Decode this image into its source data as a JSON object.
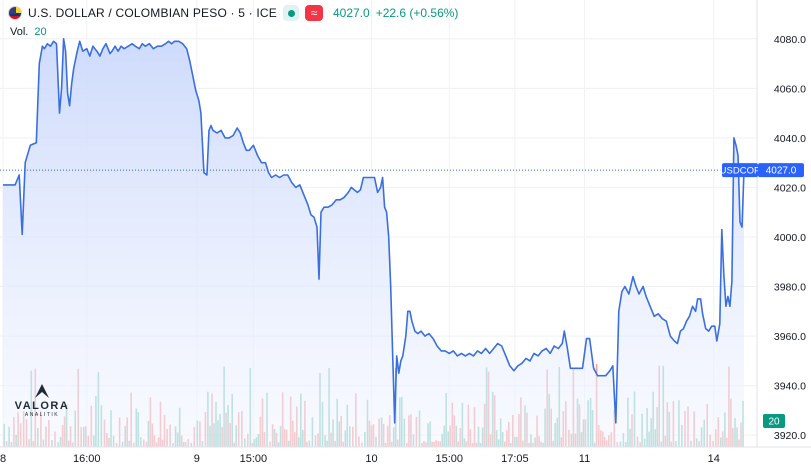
{
  "legend": {
    "title": "U.S. DOLLAR / COLOMBIAN PESO · 5 · ICE",
    "price": "4027.0",
    "change": "+22.6 (+0.56%)",
    "wave_glyph": "≈",
    "icons": [
      "us-colombia-flag-icon",
      "market-status-dot-icon",
      "wave-icon"
    ]
  },
  "volume_legend": {
    "label": "Vol.",
    "value": "20"
  },
  "logo": {
    "name": "VALORA",
    "subtitle": "ANALITIK"
  },
  "colors": {
    "line": "#3a6fe0",
    "area_top": "#c9d7fb",
    "area_bottom": "#f3f6ff",
    "vol_up": "#7fc9bb",
    "vol_down": "#f29b98",
    "accent_green": "#089981",
    "price_tag": "#2962ff",
    "vol_tag": "#089981"
  },
  "chart_data": {
    "type": "area",
    "symbol": "USDCOP",
    "last_price": 4027.0,
    "last_price_label": "4027.0",
    "symbol_tag": "USDCOP",
    "volume_tag": "20",
    "ylim": [
      3912,
      4090
    ],
    "y_ticks": [
      "4080.0",
      "4060.0",
      "4040.0",
      "4020.0",
      "4000.0",
      "3980.0",
      "3960.0",
      "3940.0",
      "3920.0"
    ],
    "y_tick_values": [
      4080,
      4060,
      4040,
      4020,
      4000,
      3980,
      3960,
      3940,
      3920
    ],
    "x_ticks": [
      {
        "label": "8",
        "t": 0
      },
      {
        "label": "16:00",
        "t": 83
      },
      {
        "label": "9",
        "t": 192
      },
      {
        "label": "15:00",
        "t": 248
      },
      {
        "label": "10",
        "t": 365
      },
      {
        "label": "15:00",
        "t": 442
      },
      {
        "label": "17:05",
        "t": 507
      },
      {
        "label": "11",
        "t": 576
      },
      {
        "label": "14",
        "t": 704
      }
    ],
    "x_range": [
      0,
      730
    ],
    "price_series": [
      [
        0,
        4021
      ],
      [
        12,
        4021
      ],
      [
        16,
        4025
      ],
      [
        19,
        4001
      ],
      [
        22,
        4030
      ],
      [
        27,
        4037
      ],
      [
        33,
        4038
      ],
      [
        36,
        4070
      ],
      [
        39,
        4077
      ],
      [
        41,
        4076
      ],
      [
        44,
        4078
      ],
      [
        47,
        4077
      ],
      [
        50,
        4079
      ],
      [
        53,
        4078
      ],
      [
        56,
        4050
      ],
      [
        58,
        4060
      ],
      [
        60,
        4080
      ],
      [
        62,
        4075
      ],
      [
        64,
        4058
      ],
      [
        66,
        4053
      ],
      [
        68,
        4062
      ],
      [
        70,
        4068
      ],
      [
        73,
        4074
      ],
      [
        76,
        4079
      ],
      [
        79,
        4075
      ],
      [
        83,
        4076
      ],
      [
        86,
        4073
      ],
      [
        89,
        4077
      ],
      [
        93,
        4075
      ],
      [
        96,
        4073
      ],
      [
        99,
        4076
      ],
      [
        102,
        4078
      ],
      [
        106,
        4074
      ],
      [
        108,
        4075
      ],
      [
        111,
        4077
      ],
      [
        114,
        4075
      ],
      [
        117,
        4077
      ],
      [
        120,
        4076
      ],
      [
        124,
        4077
      ],
      [
        128,
        4078
      ],
      [
        131,
        4077
      ],
      [
        135,
        4076
      ],
      [
        138,
        4078
      ],
      [
        141,
        4077
      ],
      [
        145,
        4078
      ],
      [
        149,
        4076
      ],
      [
        153,
        4077
      ],
      [
        157,
        4077
      ],
      [
        161,
        4078
      ],
      [
        164,
        4079
      ],
      [
        167,
        4078
      ],
      [
        170,
        4079
      ],
      [
        174,
        4079
      ],
      [
        178,
        4078
      ],
      [
        182,
        4076
      ],
      [
        185,
        4071
      ],
      [
        188,
        4065
      ],
      [
        191,
        4059
      ],
      [
        194,
        4055
      ],
      [
        196,
        4050
      ],
      [
        199,
        4026
      ],
      [
        202,
        4025
      ],
      [
        204,
        4043
      ],
      [
        206,
        4045
      ],
      [
        208,
        4043
      ],
      [
        212,
        4042
      ],
      [
        216,
        4043
      ],
      [
        220,
        4040
      ],
      [
        224,
        4040
      ],
      [
        228,
        4041
      ],
      [
        232,
        4044
      ],
      [
        235,
        4042
      ],
      [
        238,
        4038
      ],
      [
        241,
        4035
      ],
      [
        244,
        4035
      ],
      [
        248,
        4037
      ],
      [
        252,
        4033
      ],
      [
        256,
        4030
      ],
      [
        260,
        4030
      ],
      [
        263,
        4026
      ],
      [
        266,
        4024
      ],
      [
        270,
        4025
      ],
      [
        274,
        4024
      ],
      [
        278,
        4025
      ],
      [
        282,
        4025
      ],
      [
        286,
        4022
      ],
      [
        290,
        4020
      ],
      [
        294,
        4021
      ],
      [
        298,
        4017
      ],
      [
        302,
        4013
      ],
      [
        305,
        4009
      ],
      [
        308,
        4008
      ],
      [
        311,
        4004
      ],
      [
        313,
        3983
      ],
      [
        315,
        4010
      ],
      [
        318,
        4012
      ],
      [
        322,
        4012
      ],
      [
        326,
        4013
      ],
      [
        330,
        4015
      ],
      [
        334,
        4015
      ],
      [
        338,
        4016
      ],
      [
        342,
        4018
      ],
      [
        345,
        4020
      ],
      [
        348,
        4019
      ],
      [
        351,
        4018
      ],
      [
        354,
        4019
      ],
      [
        357,
        4024
      ],
      [
        360,
        4024
      ],
      [
        364,
        4024
      ],
      [
        368,
        4024
      ],
      [
        371,
        4018
      ],
      [
        374,
        4020
      ],
      [
        376,
        4024
      ],
      [
        378,
        4012
      ],
      [
        380,
        4010
      ],
      [
        382,
        4000
      ],
      [
        384,
        3980
      ],
      [
        386,
        3952
      ],
      [
        388,
        3925
      ],
      [
        390,
        3952
      ],
      [
        392,
        3945
      ],
      [
        394,
        3950
      ],
      [
        396,
        3952
      ],
      [
        399,
        3960
      ],
      [
        401,
        3970
      ],
      [
        403,
        3970
      ],
      [
        405,
        3966
      ],
      [
        408,
        3962
      ],
      [
        411,
        3961
      ],
      [
        414,
        3962
      ],
      [
        418,
        3960
      ],
      [
        422,
        3961
      ],
      [
        426,
        3959
      ],
      [
        430,
        3956
      ],
      [
        434,
        3954
      ],
      [
        438,
        3954
      ],
      [
        442,
        3953
      ],
      [
        446,
        3954
      ],
      [
        450,
        3952
      ],
      [
        454,
        3953
      ],
      [
        458,
        3952
      ],
      [
        462,
        3953
      ],
      [
        466,
        3952
      ],
      [
        470,
        3954
      ],
      [
        474,
        3953
      ],
      [
        478,
        3955
      ],
      [
        482,
        3953
      ],
      [
        486,
        3955
      ],
      [
        490,
        3957
      ],
      [
        494,
        3956
      ],
      [
        498,
        3952
      ],
      [
        502,
        3948
      ],
      [
        506,
        3946
      ],
      [
        510,
        3948
      ],
      [
        514,
        3949
      ],
      [
        518,
        3951
      ],
      [
        522,
        3950
      ],
      [
        526,
        3953
      ],
      [
        530,
        3952
      ],
      [
        534,
        3954
      ],
      [
        538,
        3955
      ],
      [
        542,
        3953
      ],
      [
        546,
        3956
      ],
      [
        550,
        3955
      ],
      [
        554,
        3957
      ],
      [
        556,
        3962
      ],
      [
        559,
        3955
      ],
      [
        562,
        3947
      ],
      [
        566,
        3947
      ],
      [
        570,
        3947
      ],
      [
        574,
        3947
      ],
      [
        578,
        3959
      ],
      [
        581,
        3959
      ],
      [
        585,
        3947
      ],
      [
        589,
        3944
      ],
      [
        593,
        3944
      ],
      [
        597,
        3944
      ],
      [
        601,
        3946
      ],
      [
        604,
        3948
      ],
      [
        607,
        3925
      ],
      [
        610,
        3970
      ],
      [
        613,
        3978
      ],
      [
        616,
        3980
      ],
      [
        620,
        3977
      ],
      [
        624,
        3984
      ],
      [
        627,
        3980
      ],
      [
        630,
        3977
      ],
      [
        634,
        3980
      ],
      [
        637,
        3976
      ],
      [
        641,
        3972
      ],
      [
        645,
        3968
      ],
      [
        649,
        3969
      ],
      [
        653,
        3967
      ],
      [
        657,
        3966
      ],
      [
        661,
        3960
      ],
      [
        665,
        3958
      ],
      [
        668,
        3957
      ],
      [
        671,
        3962
      ],
      [
        674,
        3963
      ],
      [
        677,
        3966
      ],
      [
        680,
        3968
      ],
      [
        683,
        3972
      ],
      [
        686,
        3970
      ],
      [
        688,
        3975
      ],
      [
        691,
        3975
      ],
      [
        693,
        3969
      ],
      [
        696,
        3963
      ],
      [
        699,
        3962
      ],
      [
        702,
        3964
      ],
      [
        705,
        3964
      ],
      [
        707,
        3958
      ],
      [
        710,
        3965
      ],
      [
        712,
        4003
      ],
      [
        714,
        3985
      ],
      [
        716,
        3972
      ],
      [
        718,
        3976
      ],
      [
        720,
        3972
      ],
      [
        722,
        3982
      ],
      [
        724,
        4040
      ],
      [
        726,
        4037
      ],
      [
        728,
        4033
      ],
      [
        730,
        4006
      ],
      [
        732,
        4004
      ],
      [
        734,
        4027
      ]
    ],
    "volume_ymax": 40,
    "volume_seed": 7
  }
}
